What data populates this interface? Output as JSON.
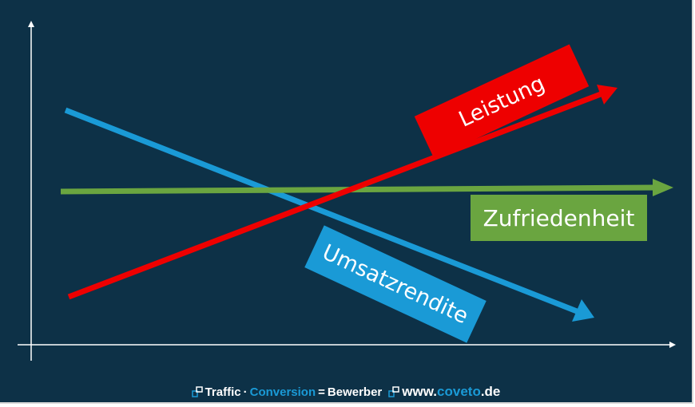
{
  "colors": {
    "background": "#0d3147",
    "axis": "#ffffff",
    "leistung": "#ee0000",
    "zufriedenheit": "#6aa540",
    "umsatzrendite": "#1a9ad6"
  },
  "labels": {
    "leistung": "Leistung",
    "zufriedenheit": "Zufriedenheit",
    "umsatzrendite": "Umsatzrendite"
  },
  "footer": {
    "icon": "coveto-logo-icon",
    "traffic": "Traffic",
    "dot": "·",
    "conversion": "Conversion",
    "equals": "=",
    "bewerber": "Bewerber",
    "url_www": "www.",
    "url_domain": "coveto",
    "url_tld": ".de"
  }
}
